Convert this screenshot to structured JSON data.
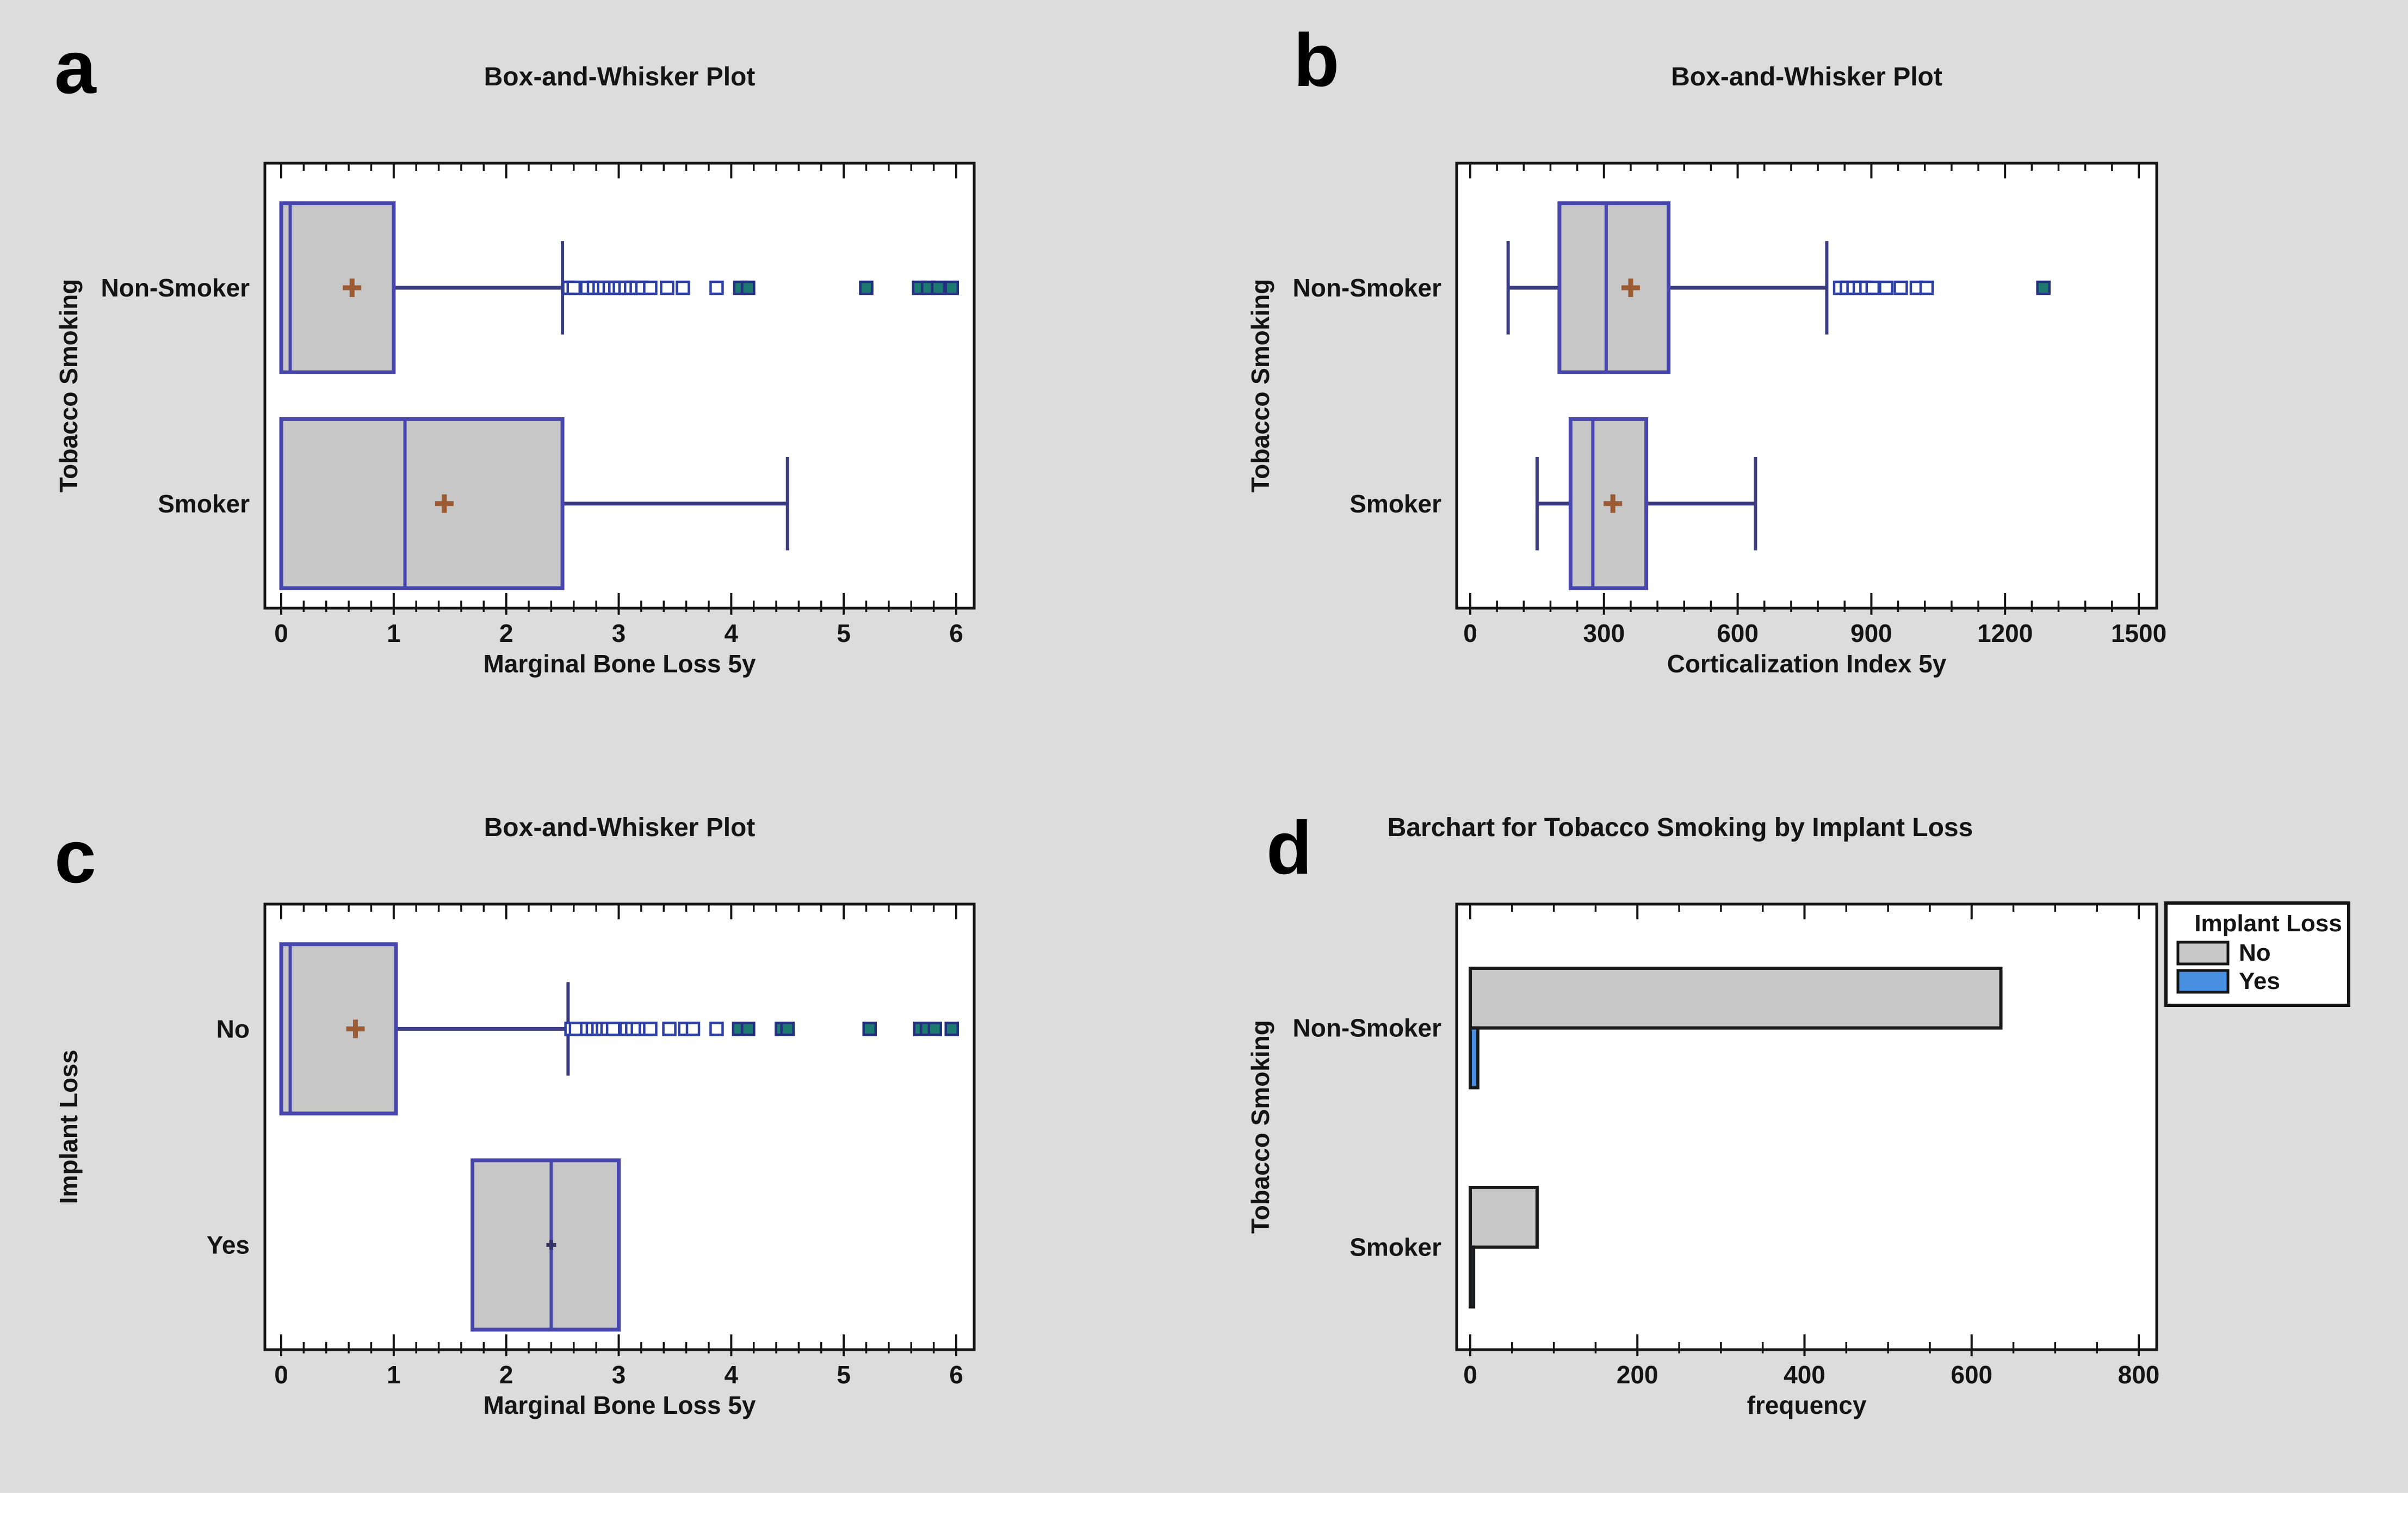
{
  "page": {
    "background": "#dcdcdc",
    "bottom_strip": "#ffffff"
  },
  "colors": {
    "box_fill": "#c7c7c7",
    "box_edge": "#4747ad",
    "whisker": "#3c3c80",
    "mean_plus": "#9c5b33",
    "mean_dot": "#333366",
    "outlier_edge": "#2d3fa3",
    "outlier_far_fill": "#1d7a70",
    "outlier_far_edge": "#23307f",
    "bar_no": "#c7c7c7",
    "bar_yes": "#4a90e2",
    "bar_edge": "#1a1a1a",
    "frame": "#141414",
    "text": "#141414",
    "plot_bg": "#ffffff",
    "legend_bg": "#ffffff"
  },
  "chart_data": [
    {
      "id": "a",
      "letter": "a",
      "type": "box",
      "title": "Box-and-Whisker Plot",
      "xlabel": "Marginal Bone Loss 5y",
      "ylabel": "Tobacco Smoking",
      "xlim": [
        0,
        6
      ],
      "xticks": [
        0,
        1,
        2,
        3,
        4,
        5,
        6
      ],
      "xtick_labels": [
        "0",
        "1",
        "2",
        "3",
        "4",
        "5",
        "6"
      ],
      "minor_divisions": 5,
      "grid": false,
      "groups": [
        {
          "label": "Non-Smoker",
          "whisker_low": 0,
          "q1": 0,
          "median": 0.08,
          "q3": 1.0,
          "whisker_high": 2.5,
          "mean": 0.63,
          "mean_marker": "plus",
          "outliers": [
            2.56,
            2.6,
            2.72,
            2.78,
            2.83,
            2.87,
            2.92,
            2.97,
            3.01,
            3.06,
            3.11,
            3.16,
            3.21,
            3.28,
            3.43,
            3.57,
            3.87
          ],
          "outliers_far": [
            4.08,
            4.15,
            5.2,
            5.67,
            5.75,
            5.84,
            5.96
          ]
        },
        {
          "label": "Smoker",
          "whisker_low": 0,
          "q1": 0,
          "median": 1.1,
          "q3": 2.5,
          "whisker_high": 4.5,
          "mean": 1.45,
          "mean_marker": "plus",
          "outliers": [],
          "outliers_far": []
        }
      ]
    },
    {
      "id": "b",
      "letter": "b",
      "type": "box",
      "title": "Box-and-Whisker Plot",
      "xlabel": "Corticalization Index 5y",
      "ylabel": "Tobacco Smoking",
      "xlim": [
        0,
        1500
      ],
      "xticks": [
        0,
        300,
        600,
        900,
        1200,
        1500
      ],
      "xtick_labels": [
        "0",
        "300",
        "600",
        "900",
        "1200",
        "1500"
      ],
      "minor_divisions": 5,
      "grid": false,
      "groups": [
        {
          "label": "Non-Smoker",
          "whisker_low": 85,
          "q1": 200,
          "median": 305,
          "q3": 445,
          "whisker_high": 800,
          "mean": 360,
          "mean_marker": "plus",
          "outliers": [
            830,
            845,
            860,
            874,
            889,
            903,
            933,
            966,
            1002,
            1024
          ],
          "outliers_far": [
            1286
          ]
        },
        {
          "label": "Smoker",
          "whisker_low": 150,
          "q1": 225,
          "median": 275,
          "q3": 395,
          "whisker_high": 640,
          "mean": 320,
          "mean_marker": "plus",
          "outliers": [],
          "outliers_far": []
        }
      ]
    },
    {
      "id": "c",
      "letter": "c",
      "type": "box",
      "title": "Box-and-Whisker Plot",
      "xlabel": "Marginal Bone Loss 5y",
      "ylabel": "Implant Loss",
      "xlim": [
        0,
        6
      ],
      "xticks": [
        0,
        1,
        2,
        3,
        4,
        5,
        6
      ],
      "xtick_labels": [
        "0",
        "1",
        "2",
        "3",
        "4",
        "5",
        "6"
      ],
      "minor_divisions": 5,
      "grid": false,
      "groups": [
        {
          "label": "No",
          "whisker_low": 0,
          "q1": 0,
          "median": 0.08,
          "q3": 1.02,
          "whisker_high": 2.55,
          "mean": 0.66,
          "mean_marker": "plus",
          "outliers": [
            2.58,
            2.62,
            2.72,
            2.77,
            2.82,
            2.86,
            2.9,
            2.95,
            3.07,
            3.12,
            3.17,
            3.24,
            3.28,
            3.45,
            3.59,
            3.66,
            3.87
          ],
          "outliers_far": [
            4.07,
            4.15,
            4.45,
            4.5,
            5.23,
            5.68,
            5.74,
            5.81,
            5.96
          ]
        },
        {
          "label": "Yes",
          "whisker_low": 1.7,
          "q1": 1.7,
          "median": 2.4,
          "q3": 3.0,
          "whisker_high": 3.0,
          "mean": 2.4,
          "mean_marker": "dot",
          "outliers": [],
          "outliers_far": []
        }
      ]
    },
    {
      "id": "d",
      "letter": "d",
      "type": "bar",
      "title": "Barchart for Tobacco Smoking by Implant Loss",
      "xlabel": "frequency",
      "ylabel": "Tobacco Smoking",
      "xlim": [
        0,
        800
      ],
      "xticks": [
        0,
        200,
        400,
        600,
        800
      ],
      "xtick_labels": [
        "0",
        "200",
        "400",
        "600",
        "800"
      ],
      "minor_divisions": 4,
      "grid": false,
      "categories": [
        "Non-Smoker",
        "Smoker"
      ],
      "series": [
        {
          "name": "No",
          "color": "bar_no",
          "values": [
            635,
            80
          ]
        },
        {
          "name": "Yes",
          "color": "bar_yes",
          "values": [
            9,
            4
          ]
        }
      ],
      "legend": {
        "title": "Implant Loss",
        "position": "top-right-outside",
        "entries": [
          {
            "label": "No",
            "color": "bar_no"
          },
          {
            "label": "Yes",
            "color": "bar_yes"
          }
        ]
      }
    }
  ]
}
